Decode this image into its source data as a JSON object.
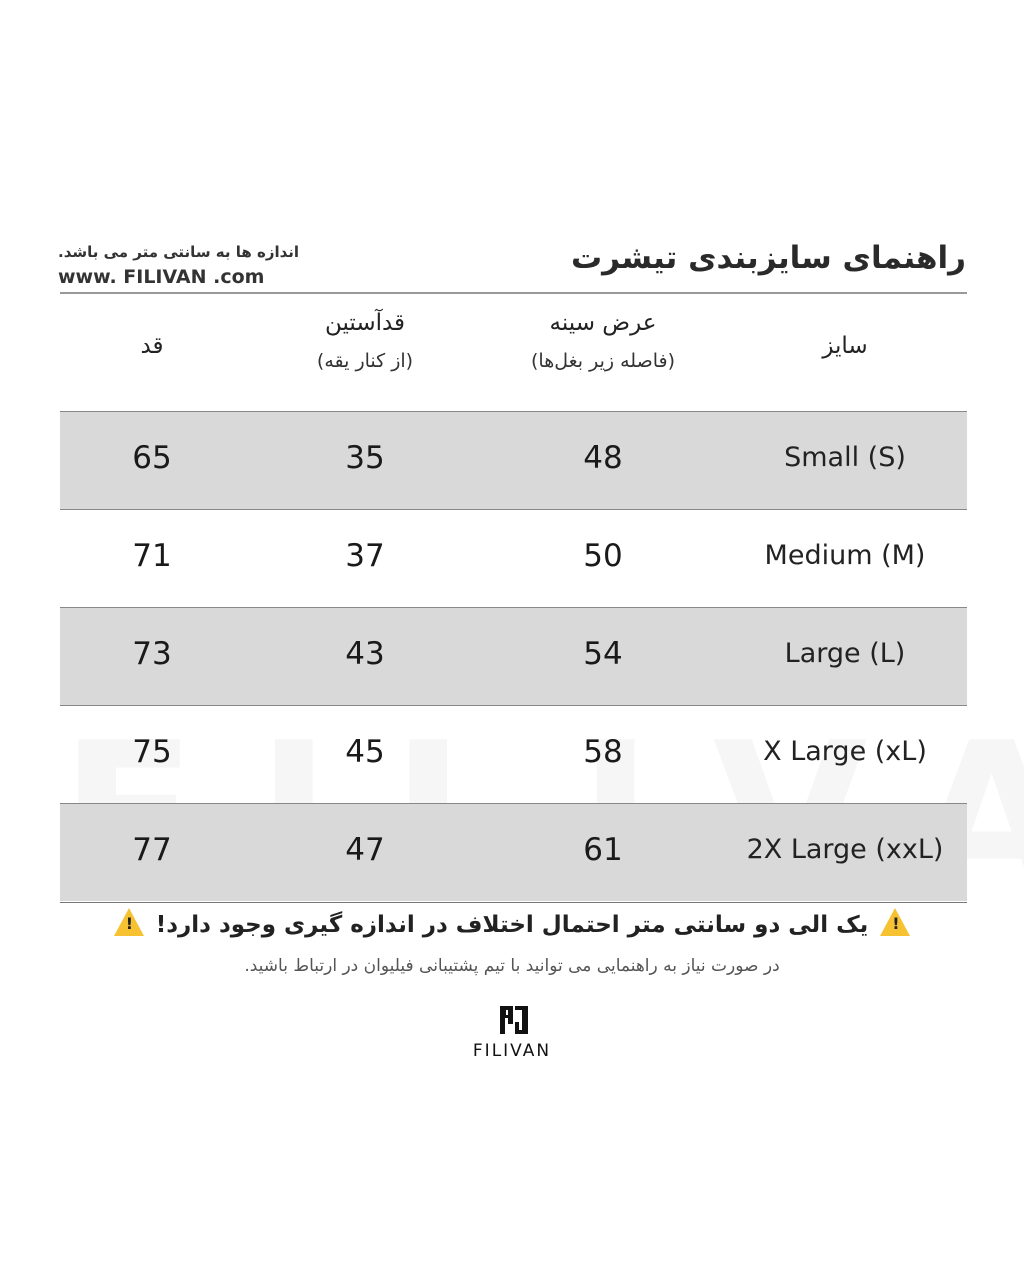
{
  "header": {
    "title": "راهنمای سایزبندی تیشرت",
    "note": "اندازه ها به سانتی متر می باشد.",
    "website": "www. FILIVAN .com"
  },
  "table": {
    "columns": [
      {
        "label": "سایز",
        "sub": ""
      },
      {
        "label": "عرض سینه",
        "sub": "(فاصله زیر بغل‌ها)"
      },
      {
        "label": "قدآستین",
        "sub": "(از کنار یقه)"
      },
      {
        "label": "قد",
        "sub": ""
      }
    ],
    "rows": [
      {
        "size": "Small  (S)",
        "chest": "48",
        "sleeve": "35",
        "length": "65"
      },
      {
        "size": "Medium (M)",
        "chest": "50",
        "sleeve": "37",
        "length": "71"
      },
      {
        "size": "Large (L)",
        "chest": "54",
        "sleeve": "43",
        "length": "73"
      },
      {
        "size": "X Large (xL)",
        "chest": "58",
        "sleeve": "45",
        "length": "75"
      },
      {
        "size": "2X Large (xxL)",
        "chest": "61",
        "sleeve": "47",
        "length": "77"
      }
    ]
  },
  "footer": {
    "warning": "یک الی دو سانتی متر احتمال اختلاف در اندازه گیری وجود دارد!",
    "warning_icon": "warning-triangle-icon",
    "support": "در صورت نیاز به راهنمایی می توانید با تیم پشتیبانی فیلیوان در ارتباط باشید.",
    "brand": "FILIVAN",
    "watermark": "FILIVAN"
  },
  "colors": {
    "row_alt": "#d9d9d9",
    "warning": "#f6c232"
  }
}
